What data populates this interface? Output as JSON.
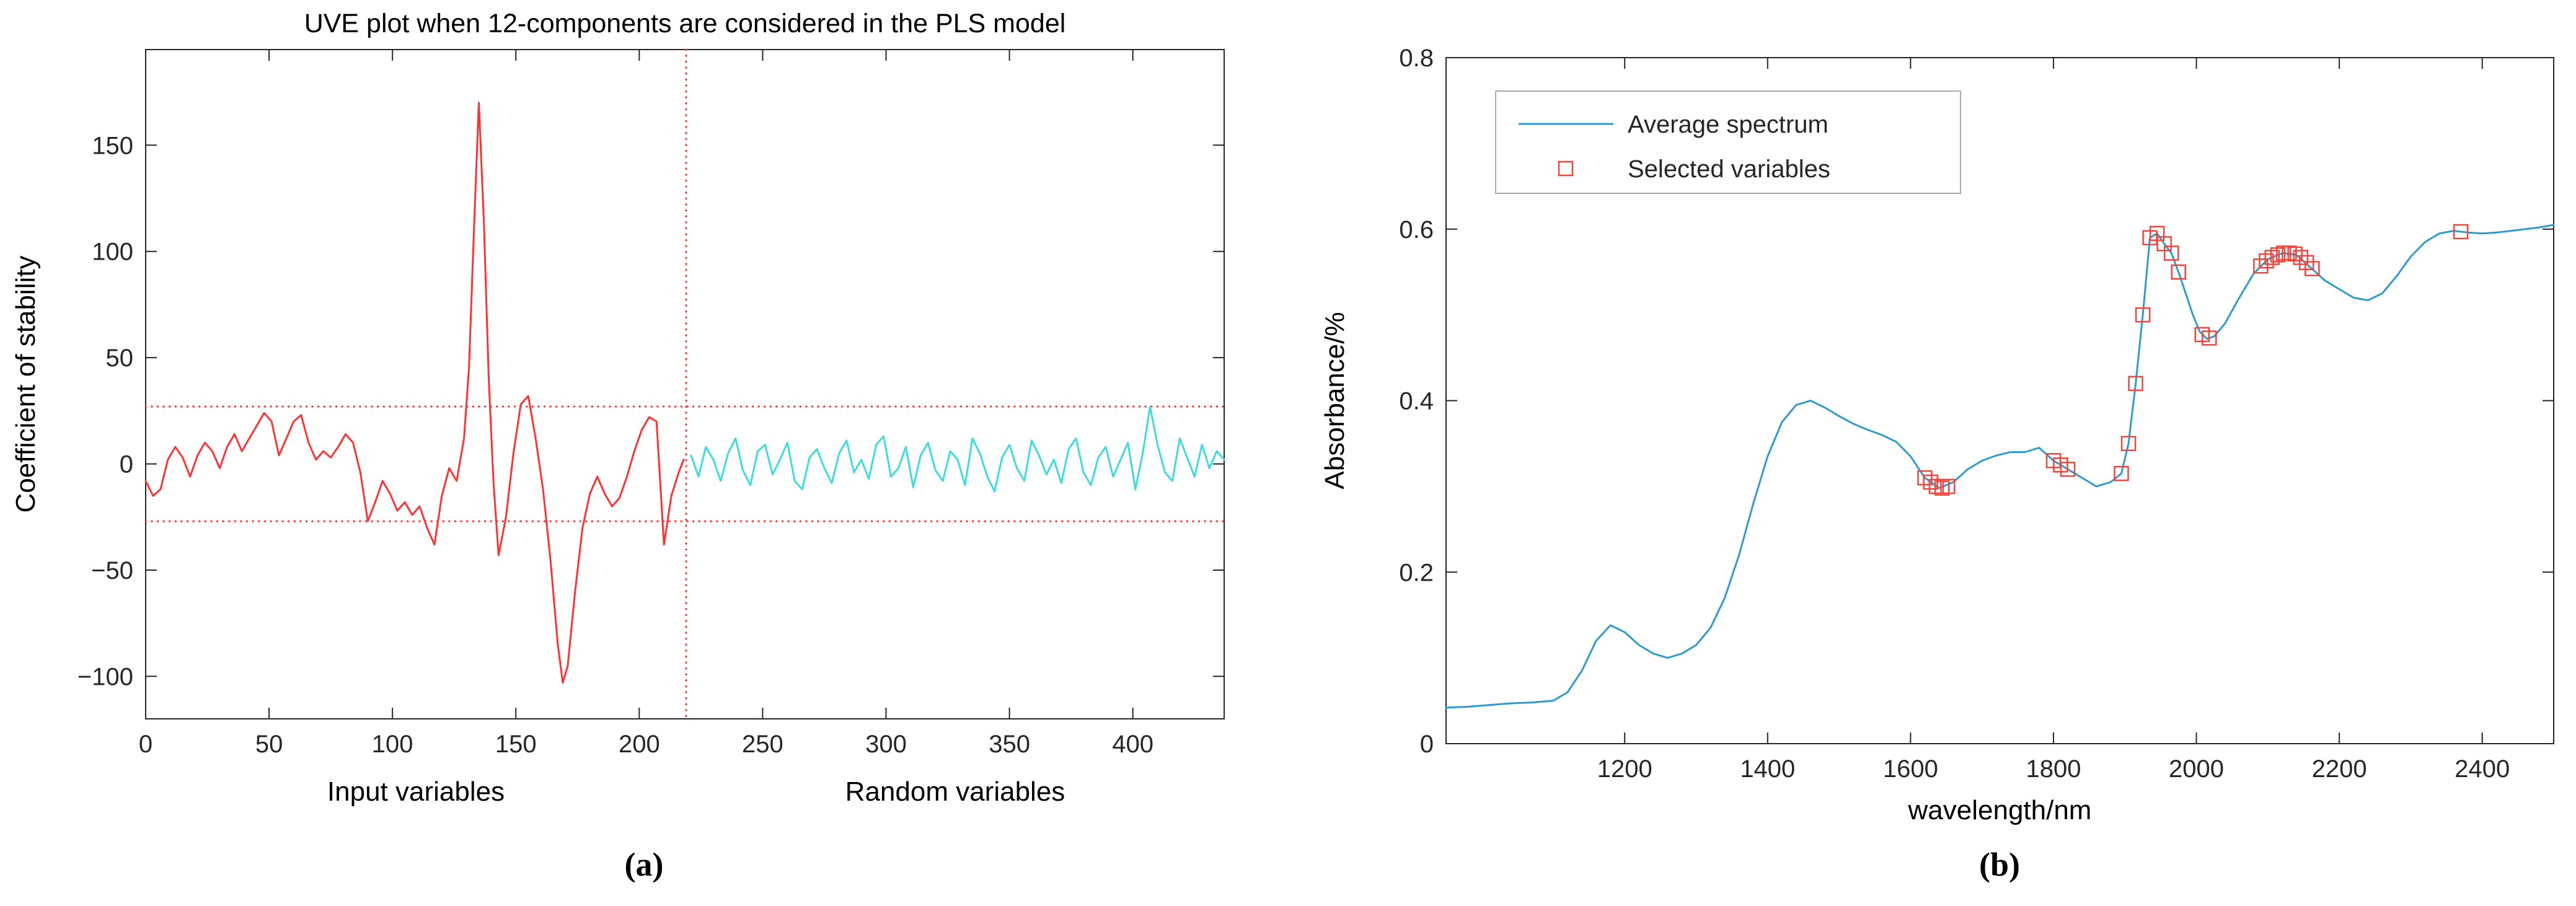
{
  "figure": {
    "panel_a_label": "(a)",
    "panel_b_label": "(b)"
  },
  "chart_data": [
    {
      "type": "line",
      "title": "UVE plot when 12-components are considered in the PLS model",
      "ylabel": "Coefficient of stability",
      "xlabel_left": "Input variables",
      "xlabel_right": "Random variables",
      "xlim": [
        0,
        437
      ],
      "ylim": [
        -120,
        195
      ],
      "grid": false,
      "xticks": [
        {
          "v": 0,
          "label": "0"
        },
        {
          "v": 50,
          "label": "50"
        },
        {
          "v": 100,
          "label": "100"
        },
        {
          "v": 150,
          "label": "150"
        },
        {
          "v": 200,
          "label": "200"
        },
        {
          "v": 250,
          "label": "250"
        },
        {
          "v": 300,
          "label": "300"
        },
        {
          "v": 350,
          "label": "350"
        },
        {
          "v": 400,
          "label": "400"
        }
      ],
      "yticks": [
        {
          "v": -100,
          "label": "−100"
        },
        {
          "v": -50,
          "label": "−50"
        },
        {
          "v": 0,
          "label": "0"
        },
        {
          "v": 50,
          "label": "50"
        },
        {
          "v": 100,
          "label": "100"
        },
        {
          "v": 150,
          "label": "150"
        }
      ],
      "cutoff_x": 219,
      "threshold_upper": 27,
      "threshold_lower": -27,
      "threshold_color": "#ff3333",
      "series": [
        {
          "name": "input-variables",
          "color": "#ff3333",
          "x": [
            0,
            3,
            6,
            9,
            12,
            15,
            18,
            21,
            24,
            27,
            30,
            33,
            36,
            39,
            42,
            45,
            48,
            51,
            54,
            57,
            60,
            63,
            66,
            69,
            72,
            75,
            78,
            81,
            84,
            87,
            90,
            93,
            96,
            99,
            102,
            105,
            108,
            111,
            114,
            117,
            120,
            123,
            126,
            129,
            131,
            133,
            135,
            137,
            139,
            141,
            143,
            146,
            149,
            152,
            155,
            158,
            161,
            164,
            167,
            169,
            171,
            174,
            177,
            180,
            183,
            186,
            189,
            192,
            195,
            198,
            201,
            204,
            207,
            210,
            213,
            216,
            218
          ],
          "y": [
            -8,
            -15,
            -12,
            2,
            8,
            3,
            -6,
            4,
            10,
            6,
            -2,
            8,
            14,
            6,
            12,
            18,
            24,
            20,
            4,
            12,
            20,
            23,
            10,
            2,
            6,
            3,
            8,
            14,
            10,
            -4,
            -27,
            -18,
            -8,
            -14,
            -22,
            -18,
            -24,
            -20,
            -30,
            -38,
            -15,
            -2,
            -8,
            12,
            45,
            110,
            170,
            115,
            40,
            -10,
            -43,
            -25,
            5,
            28,
            32,
            12,
            -12,
            -45,
            -85,
            -103,
            -95,
            -60,
            -30,
            -14,
            -6,
            -14,
            -20,
            -16,
            -6,
            6,
            16,
            22,
            20,
            -38,
            -15,
            -4,
            2
          ]
        },
        {
          "name": "random-variables",
          "color": "#3ddddd",
          "x": [
            221,
            224,
            227,
            230,
            233,
            236,
            239,
            242,
            245,
            248,
            251,
            254,
            257,
            260,
            263,
            266,
            269,
            272,
            275,
            278,
            281,
            284,
            287,
            290,
            293,
            296,
            299,
            302,
            305,
            308,
            311,
            314,
            317,
            320,
            323,
            326,
            329,
            332,
            335,
            338,
            341,
            344,
            347,
            350,
            353,
            356,
            359,
            362,
            365,
            368,
            371,
            374,
            377,
            380,
            383,
            386,
            389,
            392,
            395,
            398,
            401,
            404,
            407,
            410,
            413,
            416,
            419,
            422,
            425,
            428,
            431,
            434,
            437
          ],
          "y": [
            4,
            -6,
            8,
            2,
            -8,
            5,
            12,
            -3,
            -10,
            6,
            9,
            -5,
            2,
            10,
            -8,
            -12,
            3,
            7,
            -2,
            -9,
            5,
            11,
            -4,
            2,
            -7,
            9,
            13,
            -6,
            -2,
            8,
            -11,
            4,
            10,
            -3,
            -8,
            6,
            2,
            -10,
            12,
            5,
            -6,
            -13,
            3,
            9,
            -2,
            -8,
            11,
            4,
            -5,
            2,
            -9,
            7,
            12,
            -4,
            -10,
            3,
            8,
            -6,
            2,
            10,
            -12,
            5,
            27,
            9,
            -4,
            -8,
            12,
            3,
            -6,
            9,
            -2,
            6,
            2
          ]
        }
      ]
    },
    {
      "type": "line+scatter",
      "title": "",
      "xlabel": "wavelength/nm",
      "ylabel": "Absorbance/%",
      "xlim": [
        950,
        2500
      ],
      "ylim": [
        0,
        0.8
      ],
      "grid": false,
      "legend": [
        "Average spectrum",
        "Selected variables"
      ],
      "legend_position": "top-left",
      "xticks": [
        {
          "v": 1200,
          "label": "1200"
        },
        {
          "v": 1400,
          "label": "1400"
        },
        {
          "v": 1600,
          "label": "1600"
        },
        {
          "v": 1800,
          "label": "1800"
        },
        {
          "v": 2000,
          "label": "2000"
        },
        {
          "v": 2200,
          "label": "2200"
        },
        {
          "v": 2400,
          "label": "2400"
        }
      ],
      "yticks": [
        {
          "v": 0,
          "label": "0"
        },
        {
          "v": 0.2,
          "label": "0.2"
        },
        {
          "v": 0.4,
          "label": "0.4"
        },
        {
          "v": 0.6,
          "label": "0.6"
        },
        {
          "v": 0.8,
          "label": "0.8"
        }
      ],
      "line": {
        "name": "average-spectrum",
        "color": "#2e9ccc",
        "x": [
          950,
          980,
          1010,
          1040,
          1070,
          1100,
          1120,
          1140,
          1160,
          1180,
          1200,
          1220,
          1240,
          1260,
          1280,
          1300,
          1320,
          1340,
          1360,
          1380,
          1400,
          1420,
          1440,
          1460,
          1480,
          1500,
          1520,
          1540,
          1560,
          1580,
          1600,
          1620,
          1640,
          1660,
          1680,
          1700,
          1720,
          1740,
          1760,
          1780,
          1800,
          1820,
          1840,
          1860,
          1880,
          1895,
          1905,
          1915,
          1925,
          1935,
          1945,
          1955,
          1965,
          1975,
          1985,
          1995,
          2005,
          2015,
          2025,
          2040,
          2060,
          2080,
          2100,
          2120,
          2140,
          2160,
          2180,
          2200,
          2220,
          2240,
          2260,
          2280,
          2300,
          2320,
          2340,
          2360,
          2380,
          2400,
          2420,
          2440,
          2460,
          2480,
          2500
        ],
        "y": [
          0.042,
          0.043,
          0.045,
          0.047,
          0.048,
          0.05,
          0.06,
          0.085,
          0.12,
          0.138,
          0.13,
          0.115,
          0.105,
          0.1,
          0.105,
          0.115,
          0.135,
          0.17,
          0.22,
          0.28,
          0.335,
          0.375,
          0.395,
          0.4,
          0.392,
          0.382,
          0.373,
          0.366,
          0.36,
          0.352,
          0.335,
          0.31,
          0.298,
          0.305,
          0.32,
          0.33,
          0.336,
          0.34,
          0.34,
          0.345,
          0.33,
          0.32,
          0.31,
          0.3,
          0.305,
          0.315,
          0.35,
          0.42,
          0.5,
          0.59,
          0.595,
          0.583,
          0.572,
          0.55,
          0.525,
          0.5,
          0.48,
          0.472,
          0.475,
          0.49,
          0.52,
          0.548,
          0.565,
          0.572,
          0.57,
          0.555,
          0.54,
          0.53,
          0.52,
          0.517,
          0.525,
          0.545,
          0.568,
          0.585,
          0.595,
          0.598,
          0.596,
          0.595,
          0.596,
          0.598,
          0.6,
          0.602,
          0.605
        ]
      },
      "markers": {
        "name": "selected-variables",
        "color": "#f0463c",
        "x": [
          1620,
          1628,
          1636,
          1644,
          1652,
          1800,
          1810,
          1820,
          1895,
          1905,
          1915,
          1925,
          1935,
          1945,
          1955,
          1965,
          1975,
          2008,
          2018,
          2090,
          2098,
          2106,
          2114,
          2122,
          2130,
          2138,
          2146,
          2154,
          2162,
          2370
        ],
        "y": [
          0.31,
          0.305,
          0.3,
          0.298,
          0.3,
          0.33,
          0.325,
          0.32,
          0.315,
          0.35,
          0.42,
          0.5,
          0.59,
          0.595,
          0.583,
          0.572,
          0.55,
          0.477,
          0.473,
          0.557,
          0.563,
          0.567,
          0.57,
          0.572,
          0.572,
          0.571,
          0.567,
          0.561,
          0.554,
          0.597
        ]
      }
    }
  ]
}
